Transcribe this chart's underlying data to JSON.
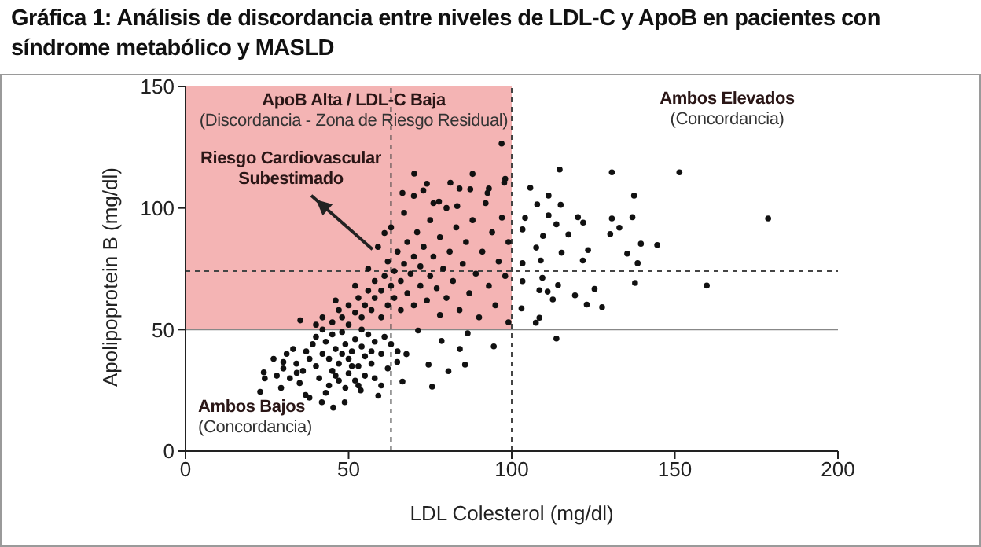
{
  "chart_data": {
    "type": "scatter",
    "title": "Gráfica 1: Análisis de discordancia entre niveles de LDL-C y ApoB en pacientes con síndrome metabólico y MASLD",
    "xlabel": "LDL Colesterol (mg/dl)",
    "ylabel": "Apolipoprotein B (mg/dl)",
    "xlim": [
      0,
      200
    ],
    "xticks": [
      0,
      50,
      100,
      150,
      200
    ],
    "ylim": [
      0,
      150
    ],
    "yticks": [
      0,
      50,
      100,
      150
    ],
    "marker": "circle",
    "series": [
      {
        "color": "#111111",
        "x": [
          114.7,
          130.7,
          151.4,
          105.7,
          137.5,
          111.3,
          107.8,
          115,
          178.6,
          130.7,
          137,
          104.1,
          111.3,
          120.3,
          113.7,
          121.9,
          130.2,
          133,
          117.4,
          109.6,
          103.3,
          139.6,
          144.6,
          123.4,
          135.4,
          107.5,
          115.3,
          138.6,
          121.8,
          103.3,
          108.9,
          137.8,
          159.8,
          103.3,
          109.4,
          114.2,
          125.4,
          108.5,
          119.4,
          111,
          112.6,
          123,
          127.7,
          103,
          108.5,
          107.4,
          113.7,
          22.9,
          24.3,
          24,
          29.3,
          30,
          34.1,
          35.2,
          36.8,
          41.8,
          45.3,
          48.8,
          53.7,
          59.1,
          66.5,
          75.6,
          80.6,
          85.7,
          84.1,
          94.5,
          86.5,
          78.5,
          71.3,
          74.5,
          67.7,
          64.9,
          40,
          42,
          44,
          45,
          46,
          47,
          48,
          49,
          50,
          50,
          51,
          52,
          53,
          54,
          55,
          56,
          57,
          58,
          43,
          41,
          38,
          36,
          39,
          37,
          34,
          33,
          45,
          47,
          52,
          55,
          60,
          61,
          62,
          44,
          49,
          53,
          58,
          63,
          65,
          35,
          32,
          30,
          31,
          40,
          48,
          42,
          46,
          51,
          54,
          57,
          27,
          28,
          38,
          43,
          60,
          40,
          42,
          45,
          47,
          48,
          50,
          50,
          52,
          53,
          54,
          55,
          56,
          57,
          58,
          58,
          60,
          60,
          61,
          62,
          62,
          63,
          64,
          64,
          65,
          66,
          66,
          67,
          68,
          68,
          69,
          70,
          70,
          71,
          72,
          72,
          73,
          74,
          75,
          75,
          76,
          77,
          78,
          78,
          79,
          80,
          80,
          81,
          82,
          83,
          84,
          85,
          86,
          87,
          88,
          89,
          90,
          91,
          92,
          93,
          94,
          95,
          96,
          97,
          98,
          99,
          99,
          46,
          52,
          56,
          59,
          63,
          67,
          70,
          74,
          76,
          84,
          88,
          93,
          98,
          96.9,
          70.1,
          81.2,
          87.3,
          66.5,
          72.9,
          97.7,
          92.6,
          61,
          77.7,
          83.3
        ],
        "values": [
          115.8,
          114.7,
          114.7,
          108.3,
          105.1,
          105.1,
          101.5,
          101.3,
          95.7,
          95.7,
          96.2,
          95.9,
          97,
          96.2,
          93.3,
          94,
          89.3,
          91.9,
          89.1,
          88.5,
          91.2,
          85.3,
          84.8,
          82.7,
          81.2,
          83.7,
          81.6,
          77.3,
          78.4,
          77.3,
          78.4,
          69.2,
          68.1,
          69.9,
          71.3,
          68.3,
          66.7,
          66.2,
          64.1,
          65.6,
          62.4,
          60.3,
          59.2,
          58.7,
          54.9,
          52.8,
          46.3,
          24.4,
          29.9,
          32.4,
          26,
          36.7,
          32.2,
          53.8,
          23.1,
          20.1,
          17.9,
          20.1,
          25,
          22.8,
          28.6,
          26.5,
          32.9,
          35.6,
          42,
          43.1,
          48.5,
          45.3,
          49.6,
          35.6,
          39.9,
          36.7,
          35,
          40,
          38,
          33,
          42,
          36,
          40,
          44,
          38,
          32,
          41,
          46,
          35,
          43,
          39,
          48,
          36,
          45,
          45,
          30,
          38,
          33,
          44,
          41,
          36,
          42,
          48,
          29,
          29,
          31,
          40,
          47,
          34,
          27,
          26,
          27,
          30,
          44,
          41,
          28,
          30,
          34,
          40,
          47,
          49,
          50,
          31,
          35,
          50,
          41,
          38,
          31,
          22,
          24,
          27,
          52,
          55,
          53,
          58,
          55,
          52,
          60,
          57,
          63,
          55,
          60,
          66,
          58,
          63,
          70,
          55,
          66,
          72,
          60,
          78,
          68,
          63,
          74,
          82,
          70,
          58,
          77,
          65,
          86,
          73,
          80,
          60,
          90,
          68,
          76,
          84,
          62,
          72,
          95,
          80,
          67,
          88,
          56,
          75,
          100,
          63,
          82,
          70,
          92,
          58,
          77,
          86,
          65,
          95,
          73,
          55,
          82,
          102,
          68,
          90,
          60,
          78,
          96,
          72,
          86,
          53,
          62,
          68,
          75,
          84,
          92,
          98,
          105,
          110,
          102,
          108,
          114,
          108,
          112,
          126.5,
          114.1,
          110.4,
          107.7,
          106.2,
          107.2,
          110.4,
          106.2,
          89.7,
          102.6,
          100.8
        ]
      }
    ],
    "ref_lines": [
      {
        "axis": "y",
        "value": 50,
        "color": "#888888",
        "line_style": "solid"
      },
      {
        "axis": "y",
        "value": 74,
        "color": "#444444",
        "line_style": "dashed"
      },
      {
        "axis": "x",
        "value": 63,
        "color": "#444444",
        "line_style": "dashed"
      },
      {
        "axis": "x",
        "value": 100,
        "color": "#444444",
        "line_style": "dashed"
      }
    ],
    "bands": [
      {
        "axis": "y",
        "from": 50,
        "to": 150,
        "color": "#ee8c8c"
      }
    ],
    "annotations": [
      "ApoB Alta / LDL-C Baja",
      "(Discordancia - Zona de Riesgo Residual)",
      {
        "text": "Riesgo Cardiovascular Subestimado",
        "x": 58,
        "y": 83
      },
      "Ambos Elevados",
      "(Concordancia)",
      "Ambos Bajos",
      "(Concordancia)"
    ]
  }
}
